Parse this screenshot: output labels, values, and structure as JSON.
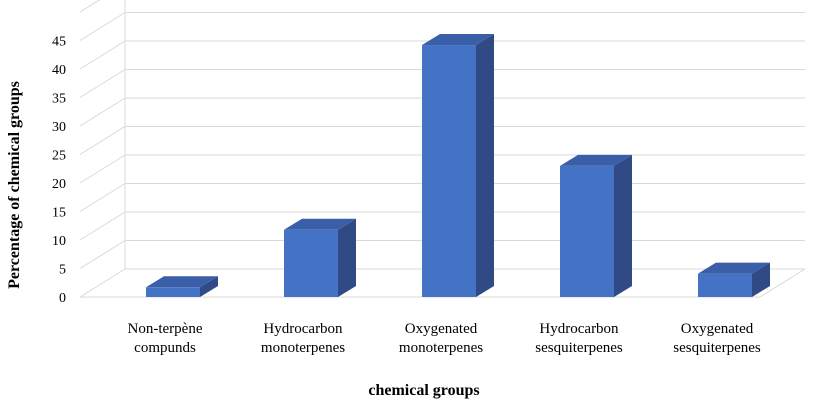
{
  "chart_data": {
    "type": "bar",
    "title": "",
    "xlabel": "chemical groups",
    "ylabel": "Percentage of chemical groups",
    "categories": [
      [
        "Non-terpène",
        "compunds"
      ],
      [
        "Hydrocarbon",
        "monoterpenes"
      ],
      [
        "Oxygenated",
        "monoterpenes"
      ],
      [
        "Hydrocarbon",
        "sesquiterpenes"
      ],
      [
        "Oxygenated",
        "sesquiterpenes"
      ]
    ],
    "values": [
      1.7,
      11.8,
      44.2,
      23.0,
      4.1
    ],
    "ylim": [
      0,
      50
    ],
    "yticks": [
      0,
      5,
      10,
      15,
      20,
      25,
      30,
      35,
      40,
      45
    ],
    "grid": true,
    "legend": "none",
    "bar_style": "3d",
    "colors": {
      "front": "#4472c4",
      "side": "#2f4a85",
      "top": "#3a5fa8",
      "grid": "#d9d9d9"
    }
  }
}
